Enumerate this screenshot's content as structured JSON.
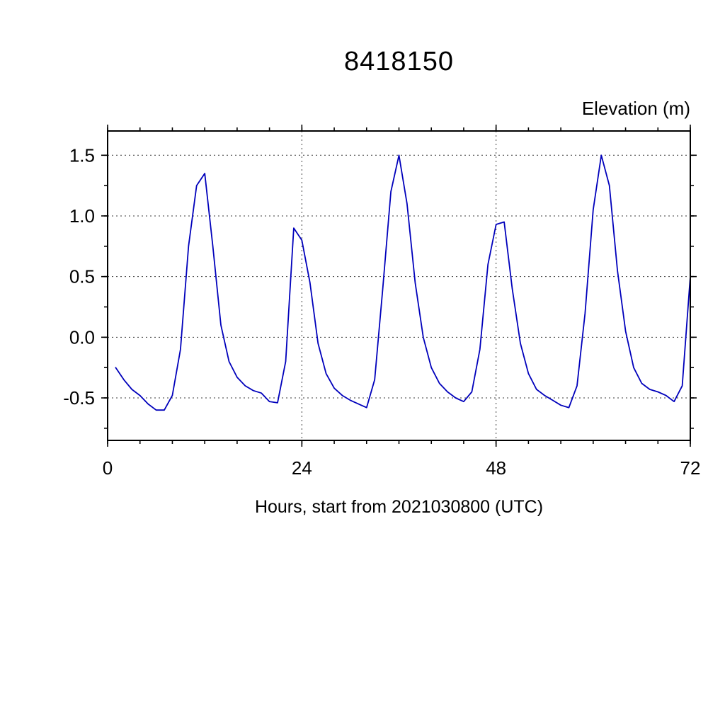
{
  "page": {
    "background": "#ffffff"
  },
  "chart_data": {
    "type": "line",
    "title": "8418150",
    "ylabel_right": "Elevation (m)",
    "xlabel": "Hours, start from 2021030800 (UTC)",
    "xlim": [
      0,
      72
    ],
    "ylim": [
      -0.85,
      1.7
    ],
    "grid": true,
    "line_color": "#0000bb",
    "x_ticks": {
      "major": [
        0,
        24,
        48,
        72
      ],
      "labels": [
        "0",
        "24",
        "48",
        "72"
      ],
      "minor_interval": 4
    },
    "y_ticks": {
      "major": [
        -0.5,
        0.0,
        0.5,
        1.0,
        1.5
      ],
      "labels": [
        "-0.5",
        "0.0",
        "0.5",
        "1.0",
        "1.5"
      ],
      "minor_interval": 0.25
    },
    "series": [
      {
        "name": "elevation",
        "x": [
          1,
          2,
          3,
          4,
          5,
          6,
          7,
          8,
          9,
          10,
          11,
          12,
          13,
          14,
          15,
          16,
          17,
          18,
          19,
          20,
          21,
          22,
          23,
          24,
          25,
          26,
          27,
          28,
          29,
          30,
          31,
          32,
          33,
          34,
          35,
          36,
          37,
          38,
          39,
          40,
          41,
          42,
          43,
          44,
          45,
          46,
          47,
          48,
          49,
          50,
          51,
          52,
          53,
          54,
          55,
          56,
          57,
          58,
          59,
          60,
          61,
          62,
          63,
          64,
          65,
          66,
          67,
          68,
          69,
          70,
          71,
          72
        ],
        "y": [
          -0.25,
          -0.35,
          -0.43,
          -0.48,
          -0.55,
          -0.6,
          -0.6,
          -0.48,
          -0.1,
          0.75,
          1.25,
          1.35,
          0.75,
          0.1,
          -0.2,
          -0.33,
          -0.4,
          -0.44,
          -0.46,
          -0.53,
          -0.54,
          -0.2,
          0.9,
          0.8,
          0.45,
          -0.05,
          -0.3,
          -0.42,
          -0.48,
          -0.52,
          -0.55,
          -0.58,
          -0.35,
          0.4,
          1.2,
          1.5,
          1.1,
          0.45,
          0.0,
          -0.25,
          -0.38,
          -0.45,
          -0.5,
          -0.53,
          -0.45,
          -0.1,
          0.6,
          0.93,
          0.95,
          0.4,
          -0.05,
          -0.3,
          -0.43,
          -0.48,
          -0.52,
          -0.56,
          -0.58,
          -0.4,
          0.2,
          1.05,
          1.5,
          1.25,
          0.55,
          0.05,
          -0.25,
          -0.38,
          -0.43,
          -0.45,
          -0.48,
          -0.53,
          -0.4,
          0.5
        ]
      }
    ]
  }
}
